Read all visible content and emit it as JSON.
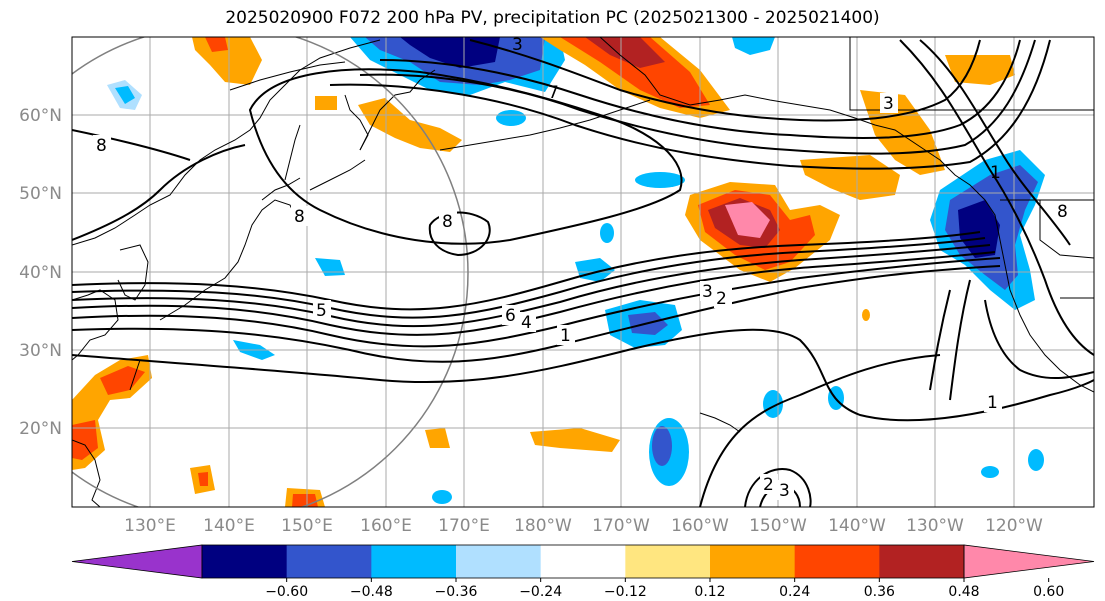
{
  "title": "2025020900 F072 200 hPa PV, precipitation PC (2025021300 - 2025021400)",
  "lat_labels": [
    "60°N",
    "50°N",
    "40°N",
    "30°N",
    "20°N"
  ],
  "lon_labels": [
    "130°E",
    "140°E",
    "150°E",
    "160°E",
    "170°E",
    "180°W",
    "170°W",
    "160°W",
    "150°W",
    "140°W",
    "130°W",
    "120°W"
  ],
  "contour_labels": [
    "8",
    "8",
    "8",
    "3",
    "7",
    "3",
    "1",
    "8",
    "5",
    "6",
    "4",
    "3",
    "2",
    "1",
    "1",
    "2",
    "3"
  ],
  "colorbar": {
    "tick_labels": [
      "−0.60",
      "−0.48",
      "−0.36",
      "−0.24",
      "−0.12",
      "0.12",
      "0.24",
      "0.36",
      "0.48",
      "0.60"
    ],
    "colors": [
      "#9933cc",
      "#000080",
      "#3355cc",
      "#00bbff",
      "#b0e0ff",
      "#ffffff",
      "#ffe680",
      "#ffa500",
      "#ff4500",
      "#b22222",
      "#ff88aa"
    ]
  },
  "colors": {
    "grid": "#aaaaaa",
    "contour": "#000000",
    "circle": "#808080"
  }
}
